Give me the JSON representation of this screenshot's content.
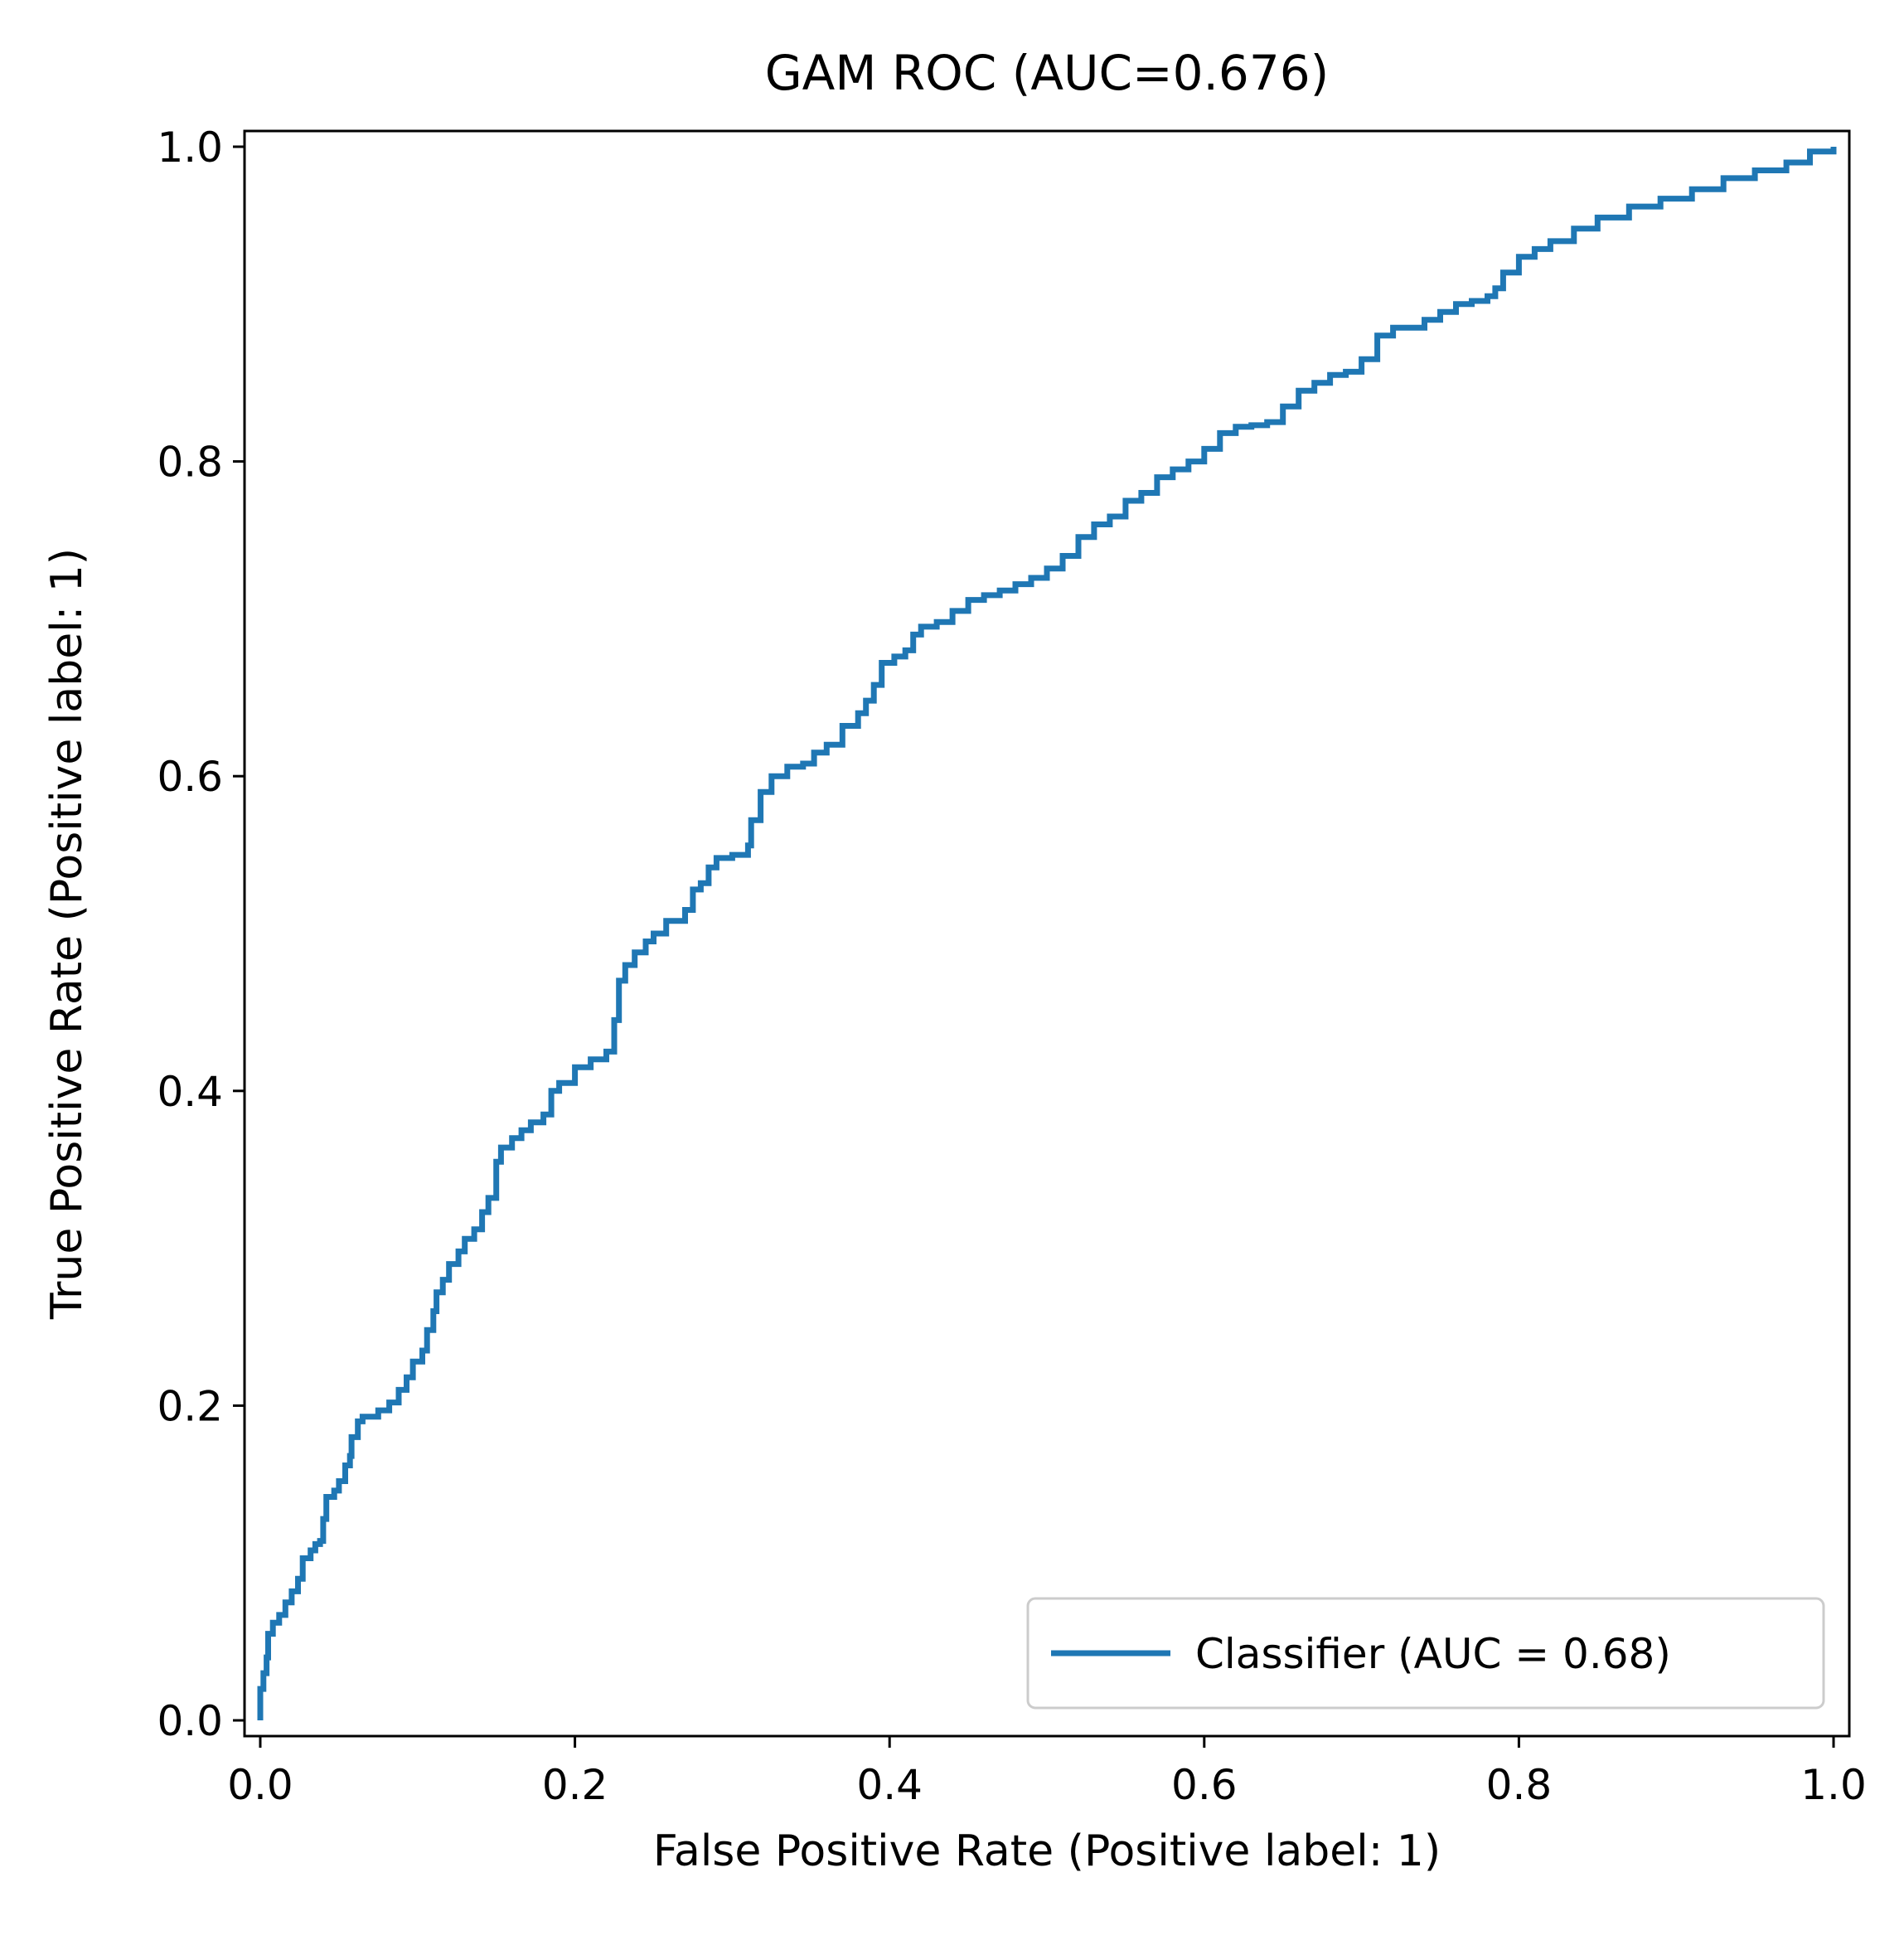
{
  "chart_data": {
    "type": "line",
    "title": "GAM ROC (AUC=0.676)",
    "xlabel": "False Positive Rate (Positive label: 1)",
    "ylabel": "True Positive Rate (Positive label: 1)",
    "xlim": [
      -0.01,
      1.01
    ],
    "ylim": [
      -0.01,
      1.01
    ],
    "xticks": [
      "0.0",
      "0.2",
      "0.4",
      "0.6",
      "0.8",
      "1.0"
    ],
    "yticks": [
      "0.0",
      "0.2",
      "0.4",
      "0.6",
      "0.8",
      "1.0"
    ],
    "grid": false,
    "legend_position": "lower-right",
    "series": [
      {
        "name": "Classifier (AUC = 0.68)",
        "color": "#1f77b4",
        "points": [
          [
            0.0,
            0.0
          ],
          [
            0.0,
            0.02
          ],
          [
            0.002,
            0.03
          ],
          [
            0.004,
            0.04
          ],
          [
            0.005,
            0.055
          ],
          [
            0.008,
            0.062
          ],
          [
            0.012,
            0.067
          ],
          [
            0.016,
            0.075
          ],
          [
            0.02,
            0.082
          ],
          [
            0.024,
            0.09
          ],
          [
            0.027,
            0.103
          ],
          [
            0.032,
            0.108
          ],
          [
            0.035,
            0.112
          ],
          [
            0.038,
            0.114
          ],
          [
            0.04,
            0.128
          ],
          [
            0.042,
            0.142
          ],
          [
            0.047,
            0.146
          ],
          [
            0.05,
            0.152
          ],
          [
            0.054,
            0.162
          ],
          [
            0.057,
            0.168
          ],
          [
            0.058,
            0.18
          ],
          [
            0.062,
            0.19
          ],
          [
            0.065,
            0.193
          ],
          [
            0.075,
            0.197
          ],
          [
            0.082,
            0.202
          ],
          [
            0.088,
            0.21
          ],
          [
            0.093,
            0.218
          ],
          [
            0.097,
            0.228
          ],
          [
            0.103,
            0.235
          ],
          [
            0.106,
            0.248
          ],
          [
            0.11,
            0.25
          ],
          [
            0.11,
            0.26
          ],
          [
            0.112,
            0.272
          ],
          [
            0.116,
            0.28
          ],
          [
            0.12,
            0.29
          ],
          [
            0.126,
            0.298
          ],
          [
            0.13,
            0.306
          ],
          [
            0.136,
            0.312
          ],
          [
            0.141,
            0.323
          ],
          [
            0.145,
            0.332
          ],
          [
            0.15,
            0.34
          ],
          [
            0.15,
            0.355
          ],
          [
            0.153,
            0.364
          ],
          [
            0.16,
            0.37
          ],
          [
            0.166,
            0.375
          ],
          [
            0.172,
            0.38
          ],
          [
            0.18,
            0.385
          ],
          [
            0.185,
            0.4
          ],
          [
            0.19,
            0.405
          ],
          [
            0.2,
            0.415
          ],
          [
            0.21,
            0.42
          ],
          [
            0.22,
            0.425
          ],
          [
            0.225,
            0.445
          ],
          [
            0.228,
            0.47
          ],
          [
            0.232,
            0.48
          ],
          [
            0.238,
            0.488
          ],
          [
            0.245,
            0.495
          ],
          [
            0.25,
            0.5
          ],
          [
            0.258,
            0.508
          ],
          [
            0.27,
            0.515
          ],
          [
            0.275,
            0.528
          ],
          [
            0.28,
            0.532
          ],
          [
            0.285,
            0.542
          ],
          [
            0.29,
            0.548
          ],
          [
            0.3,
            0.55
          ],
          [
            0.31,
            0.556
          ],
          [
            0.312,
            0.572
          ],
          [
            0.318,
            0.59
          ],
          [
            0.325,
            0.6
          ],
          [
            0.335,
            0.606
          ],
          [
            0.345,
            0.608
          ],
          [
            0.352,
            0.615
          ],
          [
            0.36,
            0.62
          ],
          [
            0.37,
            0.632
          ],
          [
            0.38,
            0.64
          ],
          [
            0.385,
            0.648
          ],
          [
            0.39,
            0.658
          ],
          [
            0.395,
            0.672
          ],
          [
            0.403,
            0.676
          ],
          [
            0.41,
            0.68
          ],
          [
            0.415,
            0.69
          ],
          [
            0.42,
            0.695
          ],
          [
            0.43,
            0.698
          ],
          [
            0.44,
            0.705
          ],
          [
            0.45,
            0.712
          ],
          [
            0.46,
            0.715
          ],
          [
            0.47,
            0.718
          ],
          [
            0.48,
            0.722
          ],
          [
            0.49,
            0.726
          ],
          [
            0.5,
            0.732
          ],
          [
            0.51,
            0.74
          ],
          [
            0.52,
            0.752
          ],
          [
            0.53,
            0.76
          ],
          [
            0.54,
            0.765
          ],
          [
            0.55,
            0.775
          ],
          [
            0.56,
            0.78
          ],
          [
            0.57,
            0.79
          ],
          [
            0.58,
            0.795
          ],
          [
            0.59,
            0.8
          ],
          [
            0.6,
            0.808
          ],
          [
            0.61,
            0.818
          ],
          [
            0.62,
            0.822
          ],
          [
            0.63,
            0.823
          ],
          [
            0.64,
            0.825
          ],
          [
            0.65,
            0.835
          ],
          [
            0.66,
            0.845
          ],
          [
            0.67,
            0.85
          ],
          [
            0.68,
            0.855
          ],
          [
            0.69,
            0.857
          ],
          [
            0.7,
            0.865
          ],
          [
            0.71,
            0.88
          ],
          [
            0.72,
            0.885
          ],
          [
            0.74,
            0.89
          ],
          [
            0.75,
            0.895
          ],
          [
            0.76,
            0.9
          ],
          [
            0.77,
            0.902
          ],
          [
            0.78,
            0.905
          ],
          [
            0.785,
            0.91
          ],
          [
            0.79,
            0.92
          ],
          [
            0.8,
            0.93
          ],
          [
            0.81,
            0.935
          ],
          [
            0.82,
            0.94
          ],
          [
            0.835,
            0.948
          ],
          [
            0.85,
            0.955
          ],
          [
            0.87,
            0.962
          ],
          [
            0.89,
            0.967
          ],
          [
            0.91,
            0.973
          ],
          [
            0.93,
            0.98
          ],
          [
            0.95,
            0.985
          ],
          [
            0.97,
            0.99
          ],
          [
            0.985,
            0.997
          ],
          [
            1.0,
            1.0
          ]
        ]
      }
    ]
  }
}
